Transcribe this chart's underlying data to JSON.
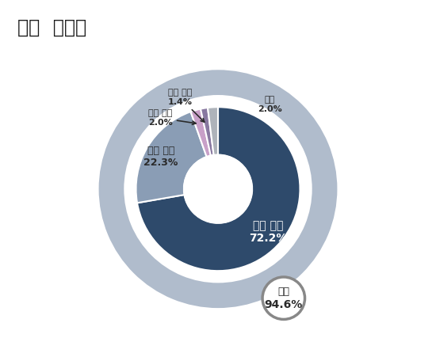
{
  "title": "국정  지지도",
  "inner_labels": [
    "적극 긍정",
    "소극 긍정",
    "소극 부정",
    "적극 부정",
    "모름"
  ],
  "inner_values": [
    72.2,
    22.3,
    2.0,
    1.4,
    2.0
  ],
  "inner_colors": [
    "#2e4a6b",
    "#8a9db5",
    "#c8a0c8",
    "#8878a0",
    "#aeb3ba"
  ],
  "outer_color": "#b0bccc",
  "badge_label": "긍정",
  "badge_value": "94.6%",
  "background_color": "#ffffff",
  "title_fontsize": 17,
  "label_fontsize": 10
}
